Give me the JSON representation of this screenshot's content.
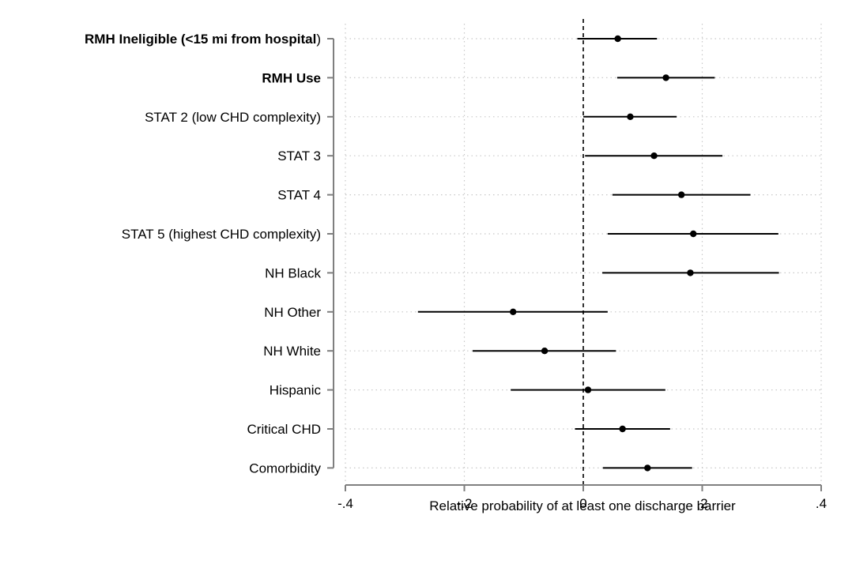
{
  "chart_data": {
    "type": "forest",
    "xlabel": "Relative probability of at least one discharge barrier",
    "xlim": [
      -0.4,
      0.4
    ],
    "xticks": [
      {
        "value": -0.4,
        "label": "-.4"
      },
      {
        "value": -0.2,
        "label": "-.2"
      },
      {
        "value": 0,
        "label": "0"
      },
      {
        "value": 0.2,
        "label": ".2"
      },
      {
        "value": 0.4,
        "label": ".4"
      }
    ],
    "reference_line": 0,
    "reference_line_style": "dashed",
    "grid": true,
    "rows": [
      {
        "label": "RMH Ineligible (<15 mi from hospital)",
        "bold_part": "RMH Ineligible (<15 mi from hospital",
        "plain_part": ")",
        "estimate": 0.058,
        "lower": -0.01,
        "upper": 0.124
      },
      {
        "label": "RMH Use",
        "bold_part": "RMH Use",
        "plain_part": "",
        "estimate": 0.139,
        "lower": 0.057,
        "upper": 0.221
      },
      {
        "label": "STAT 2 (low CHD complexity)",
        "bold_part": "",
        "plain_part": "STAT 2 (low CHD complexity)",
        "estimate": 0.079,
        "lower": 0.0,
        "upper": 0.157
      },
      {
        "label": "STAT 3",
        "bold_part": "",
        "plain_part": "STAT 3",
        "estimate": 0.119,
        "lower": 0.003,
        "upper": 0.234
      },
      {
        "label": "STAT 4",
        "bold_part": "",
        "plain_part": "STAT 4",
        "estimate": 0.165,
        "lower": 0.049,
        "upper": 0.281
      },
      {
        "label": "STAT 5 (highest CHD complexity)",
        "bold_part": "",
        "plain_part": "STAT 5 (highest CHD complexity)",
        "estimate": 0.185,
        "lower": 0.041,
        "upper": 0.328
      },
      {
        "label": "NH Black",
        "bold_part": "",
        "plain_part": "NH Black",
        "estimate": 0.18,
        "lower": 0.032,
        "upper": 0.329
      },
      {
        "label": "NH Other",
        "bold_part": "",
        "plain_part": "NH Other",
        "estimate": -0.118,
        "lower": -0.278,
        "upper": 0.041
      },
      {
        "label": "NH White",
        "bold_part": "",
        "plain_part": "NH White",
        "estimate": -0.065,
        "lower": -0.186,
        "upper": 0.055
      },
      {
        "label": "Hispanic",
        "bold_part": "",
        "plain_part": "Hispanic",
        "estimate": 0.008,
        "lower": -0.122,
        "upper": 0.138
      },
      {
        "label": "Critical CHD",
        "bold_part": "",
        "plain_part": "Critical CHD",
        "estimate": 0.066,
        "lower": -0.014,
        "upper": 0.146
      },
      {
        "label": "Comorbidity",
        "bold_part": "",
        "plain_part": "Comorbidity",
        "estimate": 0.108,
        "lower": 0.033,
        "upper": 0.183
      }
    ]
  },
  "colors": {
    "marker": "#000000",
    "axis": "#7f7f7f",
    "grid": "#c8c8c8",
    "text": "#000000"
  }
}
